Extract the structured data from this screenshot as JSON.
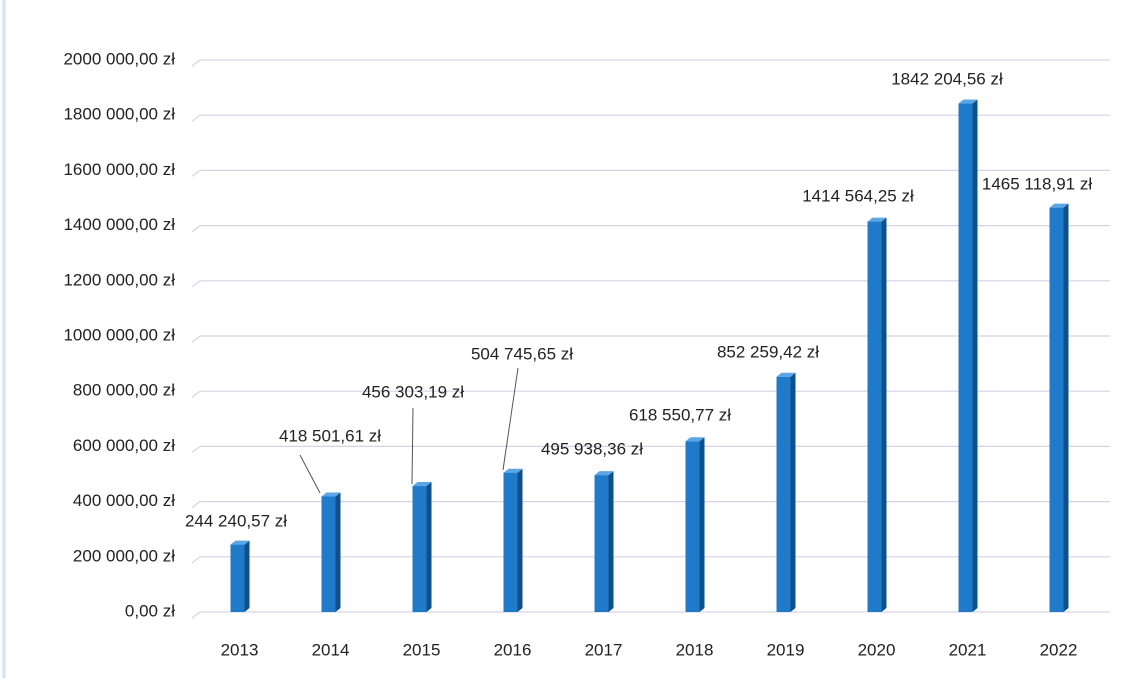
{
  "chart_data": {
    "type": "bar",
    "categories": [
      "2013",
      "2014",
      "2015",
      "2016",
      "2017",
      "2018",
      "2019",
      "2020",
      "2021",
      "2022"
    ],
    "values": [
      244240.57,
      418501.61,
      456303.19,
      504745.65,
      495938.36,
      618550.77,
      852259.42,
      1414564.25,
      1842204.56,
      1465118.91
    ],
    "value_labels": [
      "244 240,57 zł",
      "418 501,61 zł",
      "456 303,19 zł",
      "504 745,65 zł",
      "495 938,36 zł",
      "618 550,77 zł",
      "852 259,42 zł",
      "1414 564,25 zł",
      "1842 204,56 zł",
      "1465 118,91 zł"
    ],
    "color": "#1f7bc9",
    "ylim": [
      0,
      2000000
    ],
    "yticks": [
      {
        "value": 0,
        "label": "0,00 zł"
      },
      {
        "value": 200000,
        "label": "200 000,00 zł"
      },
      {
        "value": 400000,
        "label": "400 000,00 zł"
      },
      {
        "value": 600000,
        "label": "600 000,00 zł"
      },
      {
        "value": 800000,
        "label": "800 000,00 zł"
      },
      {
        "value": 1000000,
        "label": "1000 000,00 zł"
      },
      {
        "value": 1200000,
        "label": "1200 000,00 zł"
      },
      {
        "value": 1400000,
        "label": "1400 000,00 zł"
      },
      {
        "value": 1600000,
        "label": "1600 000,00 zł"
      },
      {
        "value": 1800000,
        "label": "1800 000,00 zł"
      },
      {
        "value": 2000000,
        "label": "2000 000,00 zł"
      }
    ],
    "grid": true
  }
}
